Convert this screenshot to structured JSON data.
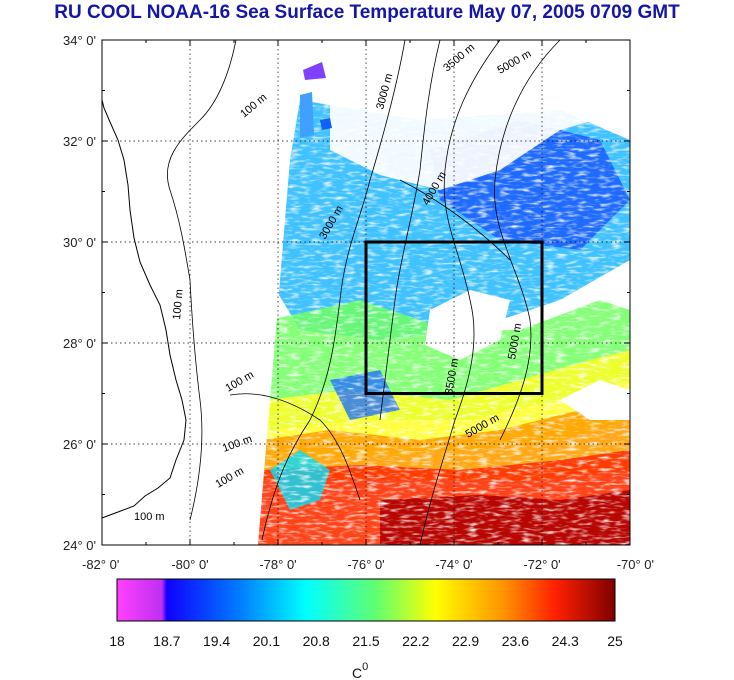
{
  "title": "RU COOL  NOAA-16 Sea Surface Temperature May 07, 2005 0709 GMT",
  "map": {
    "lat_range": [
      24,
      34
    ],
    "lon_range": [
      -82,
      -70
    ],
    "lat_ticks": [
      "24° 0'",
      "26° 0'",
      "28° 0'",
      "30° 0'",
      "32° 0'",
      "34° 0'"
    ],
    "lon_ticks": [
      "-82° 0'",
      "-80° 0'",
      "-78° 0'",
      "-76° 0'",
      "-74° 0'",
      "-72° 0'",
      "-70° 0'"
    ],
    "grid": "dotted",
    "study_box": {
      "lon_min": -76,
      "lon_max": -72,
      "lat_min": 27,
      "lat_max": 30
    },
    "contour_labels": [
      "100 m",
      "100 m",
      "100 m",
      "100 m",
      "100 m",
      "100 m",
      "3000 m",
      "3500 m",
      "5000 m",
      "4000 m",
      "3000 m",
      "5000 m",
      "3500 m",
      "5000 m"
    ],
    "land_color": "#ffffff",
    "cloud_color": "#ffffff"
  },
  "colorbar": {
    "min": 18,
    "max": 25,
    "labels": [
      "18",
      "18.7",
      "19.4",
      "20.1",
      "20.8",
      "21.5",
      "22.2",
      "22.9",
      "23.6",
      "24.3",
      "25"
    ],
    "unit": "C",
    "unit_sup": "0",
    "colors": [
      "#ff40ff",
      "#a020f0",
      "#0000ff",
      "#0090ff",
      "#00ffff",
      "#40ff80",
      "#b0ff30",
      "#ffff00",
      "#ffa000",
      "#ff3000",
      "#c00000",
      "#800000"
    ]
  }
}
